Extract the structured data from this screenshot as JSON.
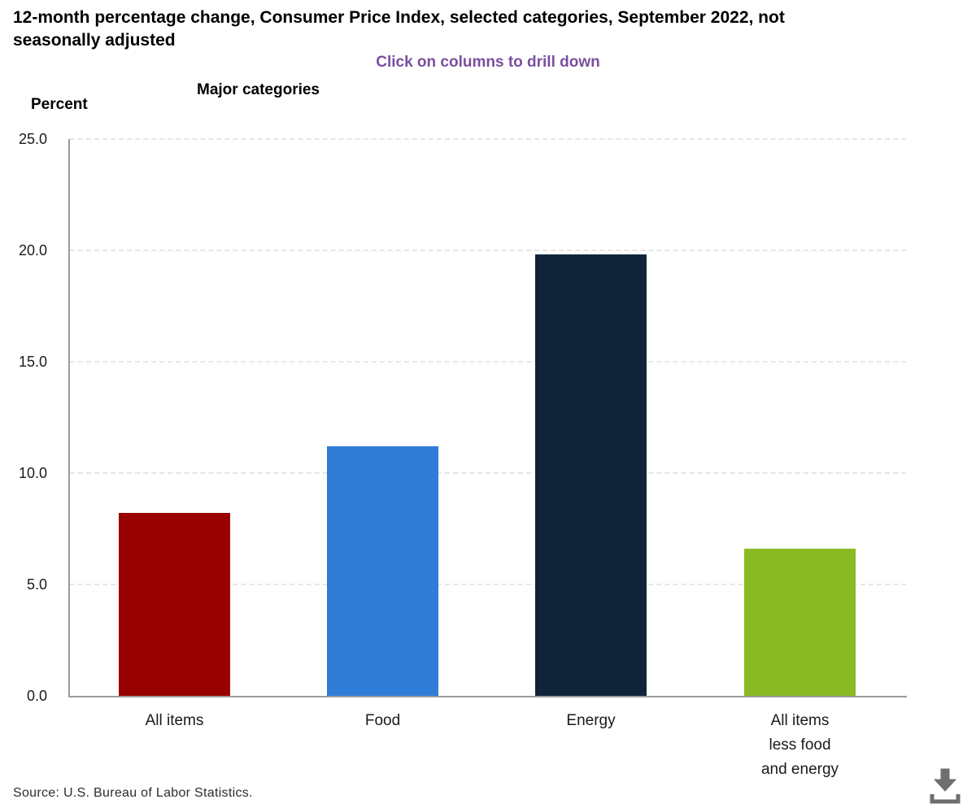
{
  "header": {
    "title_line1": "12-month percentage change, Consumer Price Index, selected categories, September 2022, not",
    "title_line2": "seasonally adjusted",
    "hint": "Click on columns to drill down",
    "hint_color": "#7b4f9e"
  },
  "chart": {
    "group_label": "Major categories",
    "axis_label": "Percent"
  },
  "chart_data": {
    "type": "bar",
    "title": "12-month percentage change, Consumer Price Index, selected categories, September 2022, not seasonally adjusted",
    "subtitle": "Click on columns to drill down",
    "categories": [
      "All items",
      "Food",
      "Energy",
      "All items less food and energy"
    ],
    "category_label_lines": [
      [
        "All items"
      ],
      [
        "Food"
      ],
      [
        "Energy"
      ],
      [
        "All items",
        "less food",
        "and energy"
      ]
    ],
    "values": [
      8.2,
      11.2,
      19.8,
      6.6
    ],
    "bar_colors": [
      "#990101",
      "#2f7dd7",
      "#0f2439",
      "#8abb23"
    ],
    "xlabel": "Major categories",
    "ylabel": "Percent",
    "ylim": [
      0,
      25
    ],
    "yticks": [
      0,
      5,
      10,
      15,
      20,
      25
    ],
    "ytick_labels": [
      "0.0",
      "5.0",
      "10.0",
      "15.0",
      "20.0",
      "25.0"
    ],
    "grid": "horizontal dashed",
    "legend": "none"
  },
  "footer": {
    "source": "Source: U.S. Bureau of Labor Statistics.",
    "download_icon": "download-icon",
    "icon_color": "#6e6e6e"
  }
}
